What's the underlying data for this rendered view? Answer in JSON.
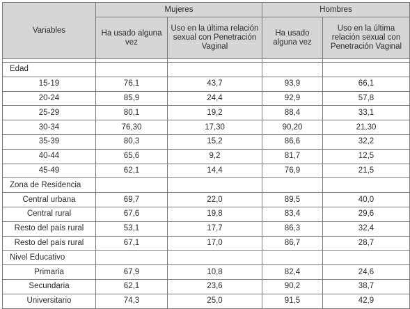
{
  "header": {
    "variables": "Variables",
    "mujeres": "Mujeres",
    "hombres": "Hombres",
    "col_ha_usado": "Ha usado alguna vez",
    "col_uso_ultima": "Uso en la última relación sexual con Penetración Vaginal"
  },
  "sections": [
    {
      "title": "Edad",
      "rows": [
        {
          "label": "15-19",
          "m_ha": "76,1",
          "m_uso": "43,7",
          "h_ha": "93,9",
          "h_uso": "66,1"
        },
        {
          "label": "20-24",
          "m_ha": "85,9",
          "m_uso": "24,4",
          "h_ha": "92,9",
          "h_uso": "57,8"
        },
        {
          "label": "25-29",
          "m_ha": "80,1",
          "m_uso": "19,2",
          "h_ha": "88,4",
          "h_uso": "33,1"
        },
        {
          "label": "30-34",
          "m_ha": "76,30",
          "m_uso": "17,30",
          "h_ha": "90,20",
          "h_uso": "21,30"
        },
        {
          "label": "35-39",
          "m_ha": "80,3",
          "m_uso": "15,2",
          "h_ha": "86,6",
          "h_uso": "32,2"
        },
        {
          "label": "40-44",
          "m_ha": "65,6",
          "m_uso": "9,2",
          "h_ha": "81,7",
          "h_uso": "12,5"
        },
        {
          "label": "45-49",
          "m_ha": "62,1",
          "m_uso": "14,4",
          "h_ha": "76,9",
          "h_uso": "21,5"
        }
      ]
    },
    {
      "title": "Zona de Residencia",
      "rows": [
        {
          "label": "Central urbana",
          "m_ha": "69,7",
          "m_uso": "22,0",
          "h_ha": "89,5",
          "h_uso": "40,0"
        },
        {
          "label": "Central rural",
          "m_ha": "67,6",
          "m_uso": "19,8",
          "h_ha": "83,4",
          "h_uso": "29,6"
        },
        {
          "label": "Resto del país rural",
          "m_ha": "53,1",
          "m_uso": "17,7",
          "h_ha": "86,3",
          "h_uso": "32,4"
        },
        {
          "label": "Resto del país rural",
          "m_ha": "67,1",
          "m_uso": "17,0",
          "h_ha": "86,7",
          "h_uso": "28,7"
        }
      ]
    },
    {
      "title": "Nivel Educativo",
      "rows": [
        {
          "label": "Primaria",
          "m_ha": "67,9",
          "m_uso": "10,8",
          "h_ha": "82,4",
          "h_uso": "24,6"
        },
        {
          "label": "Secundaria",
          "m_ha": "62,1",
          "m_uso": "23,6",
          "h_ha": "90,2",
          "h_uso": "38,7"
        },
        {
          "label": "Universitario",
          "m_ha": "74,3",
          "m_uso": "25,0",
          "h_ha": "91,5",
          "h_uso": "42,9"
        }
      ]
    }
  ]
}
